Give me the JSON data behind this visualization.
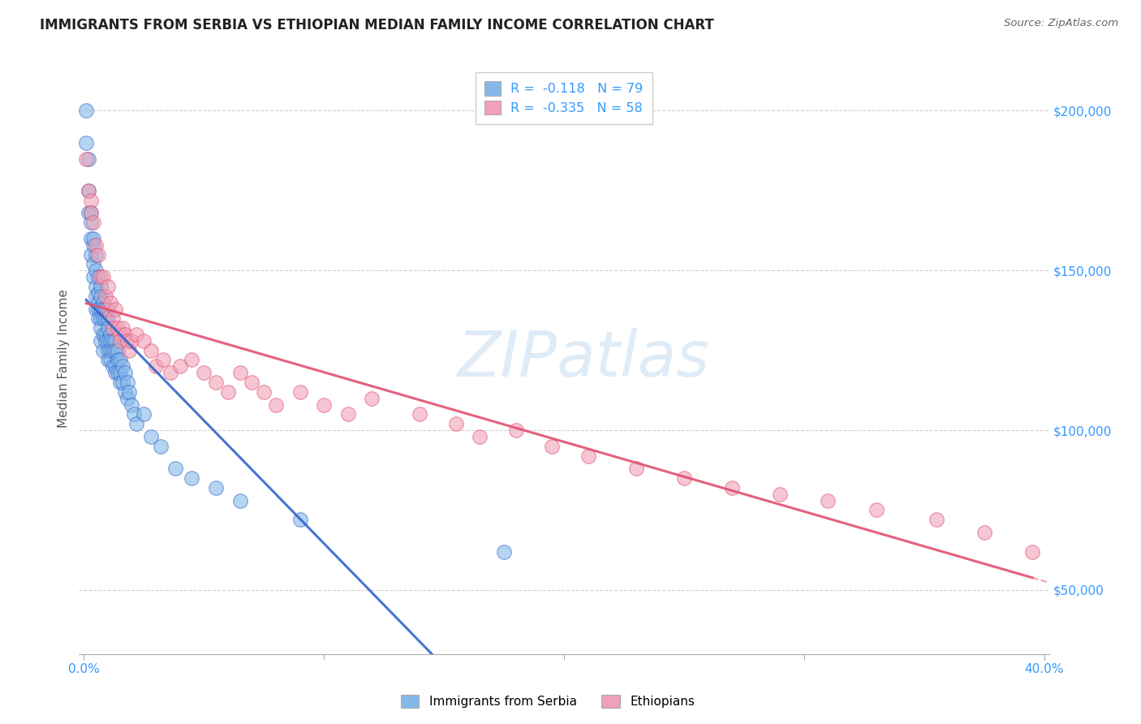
{
  "title": "IMMIGRANTS FROM SERBIA VS ETHIOPIAN MEDIAN FAMILY INCOME CORRELATION CHART",
  "source": "Source: ZipAtlas.com",
  "ylabel": "Median Family Income",
  "ylim": [
    30000,
    215000
  ],
  "xlim": [
    -0.002,
    0.402
  ],
  "yticks": [
    50000,
    100000,
    150000,
    200000
  ],
  "ytick_labels": [
    "$50,000",
    "$100,000",
    "$150,000",
    "$200,000"
  ],
  "xtick_positions": [
    0.0,
    0.1,
    0.2,
    0.3,
    0.4
  ],
  "xtick_labels": [
    "0.0%",
    "",
    "",
    "",
    "40.0%"
  ],
  "grid_color": "#d0d0d0",
  "background_color": "#ffffff",
  "watermark": "ZIPatlas",
  "series": [
    {
      "name": "Immigrants from Serbia",
      "color": "#85b8e8",
      "line_color": "#3366cc",
      "x": [
        0.001,
        0.001,
        0.002,
        0.002,
        0.002,
        0.003,
        0.003,
        0.003,
        0.003,
        0.004,
        0.004,
        0.004,
        0.004,
        0.005,
        0.005,
        0.005,
        0.005,
        0.005,
        0.006,
        0.006,
        0.006,
        0.006,
        0.006,
        0.007,
        0.007,
        0.007,
        0.007,
        0.007,
        0.007,
        0.008,
        0.008,
        0.008,
        0.008,
        0.008,
        0.009,
        0.009,
        0.009,
        0.009,
        0.01,
        0.01,
        0.01,
        0.01,
        0.01,
        0.011,
        0.011,
        0.011,
        0.011,
        0.012,
        0.012,
        0.012,
        0.013,
        0.013,
        0.013,
        0.013,
        0.014,
        0.014,
        0.014,
        0.015,
        0.015,
        0.015,
        0.016,
        0.016,
        0.017,
        0.017,
        0.018,
        0.018,
        0.019,
        0.02,
        0.021,
        0.022,
        0.025,
        0.028,
        0.032,
        0.038,
        0.045,
        0.055,
        0.065,
        0.09,
        0.175
      ],
      "y": [
        200000,
        190000,
        185000,
        175000,
        168000,
        165000,
        160000,
        155000,
        168000,
        158000,
        152000,
        148000,
        160000,
        155000,
        150000,
        145000,
        142000,
        138000,
        148000,
        143000,
        140000,
        138000,
        135000,
        145000,
        142000,
        138000,
        135000,
        132000,
        128000,
        140000,
        138000,
        135000,
        130000,
        125000,
        138000,
        135000,
        130000,
        128000,
        135000,
        132000,
        128000,
        125000,
        122000,
        130000,
        128000,
        125000,
        122000,
        128000,
        125000,
        120000,
        128000,
        125000,
        120000,
        118000,
        125000,
        122000,
        118000,
        122000,
        118000,
        115000,
        120000,
        115000,
        118000,
        112000,
        115000,
        110000,
        112000,
        108000,
        105000,
        102000,
        105000,
        98000,
        95000,
        88000,
        85000,
        82000,
        78000,
        72000,
        62000
      ]
    },
    {
      "name": "Ethiopians",
      "color": "#f0a0b8",
      "line_color": "#e05070",
      "x": [
        0.001,
        0.002,
        0.003,
        0.003,
        0.004,
        0.005,
        0.006,
        0.007,
        0.008,
        0.009,
        0.01,
        0.01,
        0.011,
        0.012,
        0.012,
        0.013,
        0.014,
        0.015,
        0.015,
        0.016,
        0.017,
        0.018,
        0.019,
        0.02,
        0.022,
        0.025,
        0.028,
        0.03,
        0.033,
        0.036,
        0.04,
        0.045,
        0.05,
        0.055,
        0.06,
        0.065,
        0.07,
        0.075,
        0.08,
        0.09,
        0.1,
        0.11,
        0.12,
        0.14,
        0.155,
        0.165,
        0.18,
        0.195,
        0.21,
        0.23,
        0.25,
        0.27,
        0.29,
        0.31,
        0.33,
        0.355,
        0.375,
        0.395
      ],
      "y": [
        185000,
        175000,
        172000,
        168000,
        165000,
        158000,
        155000,
        148000,
        148000,
        142000,
        145000,
        138000,
        140000,
        135000,
        132000,
        138000,
        132000,
        130000,
        128000,
        132000,
        130000,
        128000,
        125000,
        128000,
        130000,
        128000,
        125000,
        120000,
        122000,
        118000,
        120000,
        122000,
        118000,
        115000,
        112000,
        118000,
        115000,
        112000,
        108000,
        112000,
        108000,
        105000,
        110000,
        105000,
        102000,
        98000,
        100000,
        95000,
        92000,
        88000,
        85000,
        82000,
        80000,
        78000,
        75000,
        72000,
        68000,
        62000
      ]
    }
  ],
  "legend_entries": [
    {
      "label": "R =  -0.118   N = 79",
      "color": "#85b8e8"
    },
    {
      "label": "R =  -0.335   N = 58",
      "color": "#f0a0b8"
    }
  ],
  "bottom_legend": [
    {
      "label": "Immigrants from Serbia",
      "color": "#85b8e8"
    },
    {
      "label": "Ethiopians",
      "color": "#f0a0b8"
    }
  ],
  "title_fontsize": 12,
  "axis_label_fontsize": 11,
  "tick_fontsize": 11
}
